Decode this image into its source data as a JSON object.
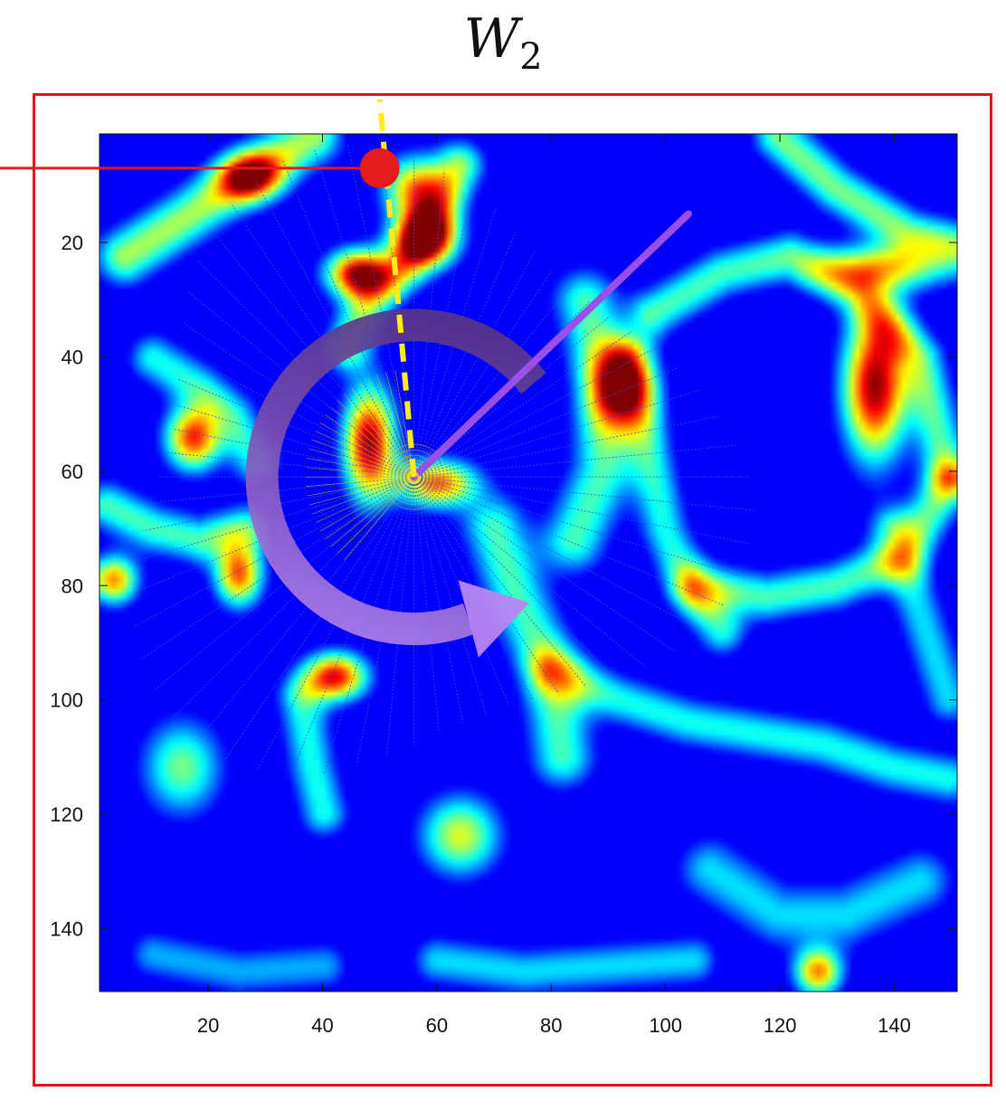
{
  "title": {
    "main": "W",
    "sub": "2"
  },
  "chart_data": {
    "type": "heatmap",
    "title": "W2",
    "xlabel": "",
    "ylabel": "",
    "xlim": [
      1,
      151
    ],
    "ylim": [
      1,
      151
    ],
    "y_reversed": true,
    "xticks": [
      20,
      40,
      60,
      80,
      100,
      120,
      140
    ],
    "yticks": [
      20,
      40,
      60,
      80,
      100,
      120,
      140
    ],
    "colormap": "jet",
    "grid": false,
    "hotspots": [
      {
        "x": 48,
        "y": 55,
        "intensity": 1.0,
        "sx": 3.2,
        "sy": 7
      },
      {
        "x": 60,
        "y": 62,
        "intensity": 0.8,
        "sx": 5,
        "sy": 3
      },
      {
        "x": 46,
        "y": 25,
        "intensity": 0.95,
        "sx": 4,
        "sy": 3
      },
      {
        "x": 58,
        "y": 19,
        "intensity": 0.9,
        "sx": 4,
        "sy": 3.5
      },
      {
        "x": 56,
        "y": 10,
        "intensity": 0.7,
        "sx": 4,
        "sy": 4
      },
      {
        "x": 17,
        "y": 54,
        "intensity": 0.85,
        "sx": 3.5,
        "sy": 4
      },
      {
        "x": 25,
        "y": 78,
        "intensity": 0.8,
        "sx": 3,
        "sy": 4
      },
      {
        "x": 3,
        "y": 79,
        "intensity": 0.75,
        "sx": 3,
        "sy": 3
      },
      {
        "x": 42,
        "y": 96,
        "intensity": 0.9,
        "sx": 4,
        "sy": 3
      },
      {
        "x": 137,
        "y": 45,
        "intensity": 1.0,
        "sx": 4,
        "sy": 9
      },
      {
        "x": 139,
        "y": 24,
        "intensity": 0.6,
        "sx": 8,
        "sy": 3
      },
      {
        "x": 92,
        "y": 45,
        "intensity": 0.65,
        "sx": 4,
        "sy": 5
      },
      {
        "x": 64,
        "y": 124,
        "intensity": 0.6,
        "sx": 5,
        "sy": 5
      },
      {
        "x": 127,
        "y": 148,
        "intensity": 0.75,
        "sx": 3,
        "sy": 3
      },
      {
        "x": 27,
        "y": 8,
        "intensity": 0.7,
        "sx": 4,
        "sy": 3
      },
      {
        "x": 15,
        "y": 112,
        "intensity": 0.5,
        "sx": 5,
        "sy": 6
      }
    ],
    "ridges": [
      {
        "points": [
          [
            5,
            22
          ],
          [
            16,
            15
          ],
          [
            28,
            7
          ],
          [
            38,
            1
          ]
        ],
        "intensity": 0.55,
        "width": 3.5
      },
      {
        "points": [
          [
            120,
            1
          ],
          [
            130,
            10
          ],
          [
            143,
            18
          ],
          [
            151,
            20
          ]
        ],
        "intensity": 0.5,
        "width": 3
      },
      {
        "points": [
          [
            86,
            30
          ],
          [
            90,
            45
          ],
          [
            89,
            60
          ],
          [
            84,
            72
          ]
        ],
        "intensity": 0.45,
        "width": 4
      },
      {
        "points": [
          [
            98,
            32
          ],
          [
            110,
            25
          ],
          [
            122,
            22
          ],
          [
            134,
            28
          ],
          [
            145,
            40
          ],
          [
            150,
            60
          ]
        ],
        "intensity": 0.45,
        "width": 3
      },
      {
        "points": [
          [
            150,
            62
          ],
          [
            142,
            75
          ],
          [
            130,
            80
          ],
          [
            118,
            82
          ],
          [
            106,
            80
          ]
        ],
        "intensity": 0.45,
        "width": 3
      },
      {
        "points": [
          [
            94,
            40
          ],
          [
            97,
            55
          ],
          [
            100,
            70
          ],
          [
            104,
            80
          ],
          [
            110,
            88
          ]
        ],
        "intensity": 0.4,
        "width": 3
      },
      {
        "points": [
          [
            80,
            95
          ],
          [
            92,
            100
          ],
          [
            104,
            104
          ],
          [
            116,
            106
          ],
          [
            128,
            108
          ],
          [
            140,
            112
          ],
          [
            150,
            114
          ]
        ],
        "intensity": 0.4,
        "width": 3
      },
      {
        "points": [
          [
            70,
            70
          ],
          [
            74,
            82
          ],
          [
            80,
            95
          ],
          [
            82,
            110
          ]
        ],
        "intensity": 0.45,
        "width": 4
      },
      {
        "points": [
          [
            2,
            66
          ],
          [
            10,
            70
          ],
          [
            18,
            72
          ],
          [
            26,
            70
          ]
        ],
        "intensity": 0.45,
        "width": 3
      },
      {
        "points": [
          [
            10,
            40
          ],
          [
            18,
            45
          ],
          [
            24,
            50
          ],
          [
            28,
            58
          ]
        ],
        "intensity": 0.4,
        "width": 3
      },
      {
        "points": [
          [
            36,
            100
          ],
          [
            38,
            112
          ],
          [
            40,
            120
          ]
        ],
        "intensity": 0.4,
        "width": 3
      },
      {
        "points": [
          [
            108,
            130
          ],
          [
            120,
            138
          ],
          [
            132,
            138
          ],
          [
            145,
            132
          ]
        ],
        "intensity": 0.35,
        "width": 4
      },
      {
        "points": [
          [
            60,
            146
          ],
          [
            75,
            148
          ],
          [
            90,
            147
          ],
          [
            105,
            146
          ]
        ],
        "intensity": 0.35,
        "width": 3
      },
      {
        "points": [
          [
            10,
            145
          ],
          [
            25,
            148
          ],
          [
            40,
            147
          ]
        ],
        "intensity": 0.3,
        "width": 3
      },
      {
        "points": [
          [
            140,
            70
          ],
          [
            146,
            88
          ],
          [
            150,
            100
          ]
        ],
        "intensity": 0.35,
        "width": 3
      },
      {
        "points": [
          [
            44,
            38
          ],
          [
            48,
            30
          ],
          [
            54,
            24
          ],
          [
            60,
            14
          ],
          [
            64,
            6
          ]
        ],
        "intensity": 0.5,
        "width": 3
      }
    ],
    "annotations": {
      "rays": {
        "center": [
          56,
          61
        ],
        "count": 64,
        "radius": 60,
        "color": "#3050e0"
      },
      "inner_cone": {
        "from_angle_deg": 100,
        "to_angle_deg": 230,
        "color": "#ffd20a"
      },
      "yellow_line": {
        "from": [
          56,
          61
        ],
        "to": [
          50,
          -5
        ],
        "color": "#ffeb1c",
        "style": "dashed"
      },
      "red_point": {
        "x": 50,
        "y": 7,
        "color": "#e8191b"
      },
      "red_leader_line_color": "#e8191b",
      "purple_line": {
        "from": [
          56,
          61
        ],
        "to": [
          104,
          15
        ],
        "color": "#9a4fe6"
      },
      "rotation_arrow": {
        "center": [
          56,
          61
        ],
        "direction": "counterclockwise",
        "color_start": "#4b2b7a",
        "color_end": "#b886f0"
      }
    }
  }
}
